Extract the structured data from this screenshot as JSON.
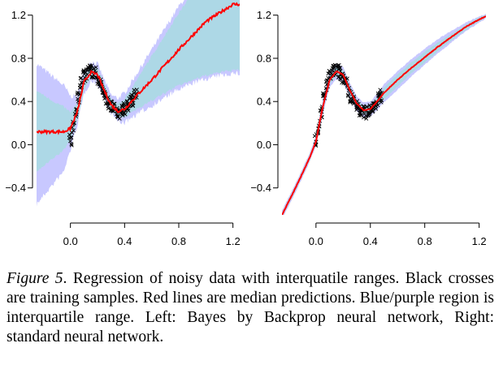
{
  "chart_data": [
    {
      "type": "line",
      "title": "",
      "xlabel": "",
      "ylabel": "",
      "xlim": [
        -0.25,
        1.25
      ],
      "ylim": [
        -0.65,
        1.25
      ],
      "x_ticks": [
        "0.0",
        "0.4",
        "0.8",
        "1.2"
      ],
      "y_ticks": [
        "−0.4",
        "0.0",
        "0.4",
        "0.8",
        "1.2"
      ],
      "x_tick_values": [
        0.0,
        0.4,
        0.8,
        1.2
      ],
      "y_tick_values": [
        -0.4,
        0.0,
        0.4,
        0.8,
        1.2
      ],
      "series": [
        {
          "role": "median",
          "color": "#ff0000",
          "x": [
            -0.25,
            -0.15,
            -0.05,
            0.0,
            0.05,
            0.1,
            0.15,
            0.2,
            0.25,
            0.3,
            0.35,
            0.4,
            0.45,
            0.5,
            0.6,
            0.7,
            0.8,
            0.9,
            1.0,
            1.1,
            1.2
          ],
          "y": [
            0.12,
            0.12,
            0.12,
            0.15,
            0.3,
            0.58,
            0.67,
            0.65,
            0.5,
            0.37,
            0.31,
            0.33,
            0.4,
            0.47,
            0.6,
            0.74,
            0.88,
            1.01,
            1.14,
            1.22,
            1.3
          ]
        },
        {
          "role": "interquartile-inner",
          "color": "#add8e6",
          "x": [
            -0.25,
            -0.15,
            -0.05,
            0.0,
            0.05,
            0.1,
            0.15,
            0.2,
            0.25,
            0.3,
            0.35,
            0.4,
            0.45,
            0.5,
            0.6,
            0.7,
            0.8,
            0.9,
            1.0,
            1.1,
            1.2
          ],
          "lower": [
            -0.25,
            -0.15,
            -0.05,
            0.05,
            0.22,
            0.5,
            0.62,
            0.6,
            0.45,
            0.32,
            0.26,
            0.25,
            0.3,
            0.34,
            0.41,
            0.48,
            0.55,
            0.6,
            0.64,
            0.67,
            0.69
          ],
          "upper": [
            0.5,
            0.42,
            0.35,
            0.3,
            0.38,
            0.64,
            0.73,
            0.71,
            0.56,
            0.42,
            0.38,
            0.42,
            0.52,
            0.62,
            0.82,
            1.02,
            1.22,
            1.4,
            1.55,
            1.55,
            1.55
          ]
        },
        {
          "role": "interquartile-outer",
          "color": "#c8c8ff",
          "x": [
            -0.25,
            -0.15,
            -0.05,
            0.0,
            0.05,
            0.1,
            0.15,
            0.2,
            0.25,
            0.3,
            0.35,
            0.4,
            0.45,
            0.5,
            0.6,
            0.7,
            0.8,
            0.9,
            1.0,
            1.1,
            1.2
          ],
          "lower": [
            -0.55,
            -0.4,
            -0.25,
            -0.05,
            0.18,
            0.47,
            0.59,
            0.57,
            0.42,
            0.29,
            0.22,
            0.2,
            0.25,
            0.29,
            0.36,
            0.44,
            0.51,
            0.57,
            0.61,
            0.64,
            0.66
          ],
          "upper": [
            0.75,
            0.65,
            0.55,
            0.45,
            0.45,
            0.68,
            0.77,
            0.75,
            0.6,
            0.46,
            0.43,
            0.48,
            0.58,
            0.68,
            0.88,
            1.08,
            1.28,
            1.45,
            1.6,
            1.6,
            1.6
          ]
        },
        {
          "role": "training-samples",
          "marker": "x",
          "color": "#000000",
          "x": [
            0.0,
            0.02,
            0.04,
            0.06,
            0.08,
            0.1,
            0.12,
            0.14,
            0.16,
            0.18,
            0.2,
            0.22,
            0.24,
            0.26,
            0.28,
            0.3,
            0.32,
            0.34,
            0.36,
            0.38,
            0.4,
            0.42,
            0.44,
            0.46,
            0.48
          ],
          "y": [
            0.05,
            0.16,
            0.3,
            0.44,
            0.56,
            0.63,
            0.67,
            0.69,
            0.68,
            0.66,
            0.62,
            0.56,
            0.5,
            0.44,
            0.39,
            0.35,
            0.32,
            0.3,
            0.3,
            0.31,
            0.33,
            0.36,
            0.39,
            0.42,
            0.45
          ]
        }
      ]
    },
    {
      "type": "line",
      "title": "",
      "xlabel": "",
      "ylabel": "",
      "xlim": [
        -0.25,
        1.25
      ],
      "ylim": [
        -0.65,
        1.25
      ],
      "x_ticks": [
        "0.0",
        "0.4",
        "0.8",
        "1.2"
      ],
      "y_ticks": [
        "−0.4",
        "0.0",
        "0.4",
        "0.8",
        "1.2"
      ],
      "x_tick_values": [
        0.0,
        0.4,
        0.8,
        1.2
      ],
      "y_tick_values": [
        -0.4,
        0.0,
        0.4,
        0.8,
        1.2
      ],
      "series": [
        {
          "role": "median",
          "color": "#ff0000",
          "x": [
            -0.25,
            -0.15,
            -0.05,
            0.0,
            0.05,
            0.1,
            0.15,
            0.2,
            0.25,
            0.3,
            0.35,
            0.4,
            0.45,
            0.5,
            0.6,
            0.7,
            0.8,
            0.9,
            1.0,
            1.1,
            1.2,
            1.25
          ],
          "y": [
            -0.65,
            -0.4,
            -0.13,
            0.03,
            0.35,
            0.6,
            0.68,
            0.65,
            0.5,
            0.38,
            0.32,
            0.33,
            0.4,
            0.48,
            0.6,
            0.71,
            0.81,
            0.91,
            1.0,
            1.09,
            1.16,
            1.19
          ]
        },
        {
          "role": "interquartile-inner",
          "color": "#add8e6",
          "x": [
            -0.25,
            -0.15,
            -0.05,
            0.0,
            0.05,
            0.1,
            0.15,
            0.2,
            0.25,
            0.3,
            0.35,
            0.4,
            0.45,
            0.5,
            0.6,
            0.7,
            0.8,
            0.9,
            1.0,
            1.1,
            1.2,
            1.25
          ],
          "lower": [
            -0.67,
            -0.42,
            -0.15,
            0.01,
            0.31,
            0.56,
            0.64,
            0.61,
            0.46,
            0.34,
            0.28,
            0.29,
            0.35,
            0.42,
            0.54,
            0.66,
            0.76,
            0.87,
            0.97,
            1.06,
            1.14,
            1.18
          ],
          "upper": [
            -0.63,
            -0.38,
            -0.11,
            0.06,
            0.39,
            0.64,
            0.72,
            0.69,
            0.54,
            0.42,
            0.36,
            0.37,
            0.44,
            0.53,
            0.65,
            0.76,
            0.86,
            0.95,
            1.03,
            1.11,
            1.18,
            1.2
          ]
        },
        {
          "role": "interquartile-outer",
          "color": "#c8c8ff",
          "x": [
            -0.25,
            -0.15,
            -0.05,
            0.0,
            0.05,
            0.1,
            0.15,
            0.2,
            0.25,
            0.3,
            0.35,
            0.4,
            0.45,
            0.5,
            0.6,
            0.7,
            0.8,
            0.9,
            1.0,
            1.1,
            1.2,
            1.25
          ],
          "lower": [
            -0.69,
            -0.44,
            -0.17,
            -0.01,
            0.28,
            0.53,
            0.61,
            0.58,
            0.43,
            0.31,
            0.25,
            0.26,
            0.32,
            0.39,
            0.51,
            0.63,
            0.74,
            0.85,
            0.95,
            1.05,
            1.13,
            1.17
          ],
          "upper": [
            -0.61,
            -0.36,
            -0.09,
            0.08,
            0.42,
            0.67,
            0.75,
            0.72,
            0.57,
            0.45,
            0.39,
            0.4,
            0.47,
            0.56,
            0.68,
            0.79,
            0.89,
            0.98,
            1.06,
            1.13,
            1.19,
            1.21
          ]
        },
        {
          "role": "training-samples",
          "marker": "x",
          "color": "#000000",
          "x": [
            0.0,
            0.02,
            0.04,
            0.06,
            0.08,
            0.1,
            0.12,
            0.14,
            0.16,
            0.18,
            0.2,
            0.22,
            0.24,
            0.26,
            0.28,
            0.3,
            0.32,
            0.34,
            0.36,
            0.38,
            0.4,
            0.42,
            0.44,
            0.46,
            0.48
          ],
          "y": [
            0.05,
            0.16,
            0.3,
            0.44,
            0.56,
            0.63,
            0.67,
            0.69,
            0.68,
            0.66,
            0.62,
            0.56,
            0.5,
            0.44,
            0.39,
            0.35,
            0.32,
            0.3,
            0.3,
            0.31,
            0.33,
            0.36,
            0.39,
            0.42,
            0.45
          ]
        }
      ]
    }
  ],
  "caption": {
    "label": "Figure 5",
    "text": ". Regression of noisy data with interquatile ranges. Black crosses are training samples. Red lines are median predictions. Blue/purple region is interquartile range. Left: Bayes by Backprop neural network, Right: standard neural network."
  }
}
